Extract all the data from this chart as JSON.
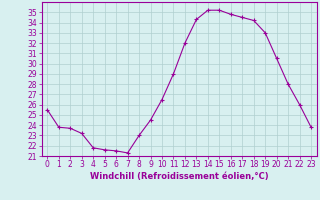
{
  "hours": [
    0,
    1,
    2,
    3,
    4,
    5,
    6,
    7,
    8,
    9,
    10,
    11,
    12,
    13,
    14,
    15,
    16,
    17,
    18,
    19,
    20,
    21,
    22,
    23
  ],
  "values": [
    25.5,
    23.8,
    23.7,
    23.2,
    21.8,
    21.6,
    21.5,
    21.3,
    23.0,
    24.5,
    26.5,
    29.0,
    32.0,
    34.3,
    35.2,
    35.2,
    34.8,
    34.5,
    34.2,
    33.0,
    30.5,
    28.0,
    26.0,
    23.8
  ],
  "line_color": "#990099",
  "marker": "+",
  "markersize": 3,
  "linewidth": 0.8,
  "bg_color": "#d8f0f0",
  "grid_color": "#b0d0d0",
  "xlabel": "Windchill (Refroidissement éolien,°C)",
  "xlabel_fontsize": 6,
  "tick_fontsize": 5.5,
  "ylim": [
    21,
    36
  ],
  "xlim": [
    -0.5,
    23.5
  ],
  "yticks": [
    21,
    22,
    23,
    24,
    25,
    26,
    27,
    28,
    29,
    30,
    31,
    32,
    33,
    34,
    35
  ],
  "xticks": [
    0,
    1,
    2,
    3,
    4,
    5,
    6,
    7,
    8,
    9,
    10,
    11,
    12,
    13,
    14,
    15,
    16,
    17,
    18,
    19,
    20,
    21,
    22,
    23
  ]
}
